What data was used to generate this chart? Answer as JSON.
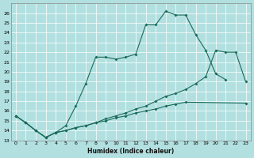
{
  "xlabel": "Humidex (Indice chaleur)",
  "background_color": "#b2e0e0",
  "line_color": "#1a6b5a",
  "xlim": [
    -0.5,
    23.5
  ],
  "ylim": [
    13,
    27
  ],
  "line1_x": [
    0,
    1,
    2,
    3,
    4,
    5,
    6,
    7,
    8,
    9,
    10,
    11,
    12,
    13,
    14,
    15,
    16,
    17,
    18,
    19,
    20,
    21
  ],
  "line1_y": [
    15.5,
    14.8,
    14.0,
    13.3,
    13.8,
    14.5,
    16.5,
    18.8,
    21.5,
    21.5,
    21.3,
    21.5,
    21.8,
    24.8,
    24.8,
    26.2,
    25.8,
    25.8,
    23.8,
    22.2,
    19.8,
    19.2
  ],
  "line2_x": [
    0,
    1,
    2,
    3,
    4,
    5,
    6,
    7,
    8,
    9,
    10,
    11,
    12,
    13,
    14,
    15,
    16,
    17,
    18,
    19,
    20,
    21,
    22,
    23
  ],
  "line2_y": [
    15.5,
    14.8,
    14.0,
    13.3,
    13.8,
    14.0,
    14.3,
    14.5,
    14.8,
    15.2,
    15.5,
    15.8,
    16.2,
    16.5,
    17.0,
    17.5,
    17.8,
    18.2,
    18.8,
    19.5,
    22.2,
    22.0,
    22.0,
    19.0
  ],
  "line3_x": [
    0,
    1,
    2,
    3,
    4,
    5,
    6,
    7,
    8,
    9,
    10,
    11,
    12,
    13,
    14,
    15,
    16,
    17,
    23
  ],
  "line3_y": [
    15.5,
    14.8,
    14.0,
    13.3,
    13.8,
    14.0,
    14.3,
    14.5,
    14.8,
    15.0,
    15.3,
    15.5,
    15.8,
    16.0,
    16.2,
    16.5,
    16.7,
    16.9,
    16.8
  ]
}
